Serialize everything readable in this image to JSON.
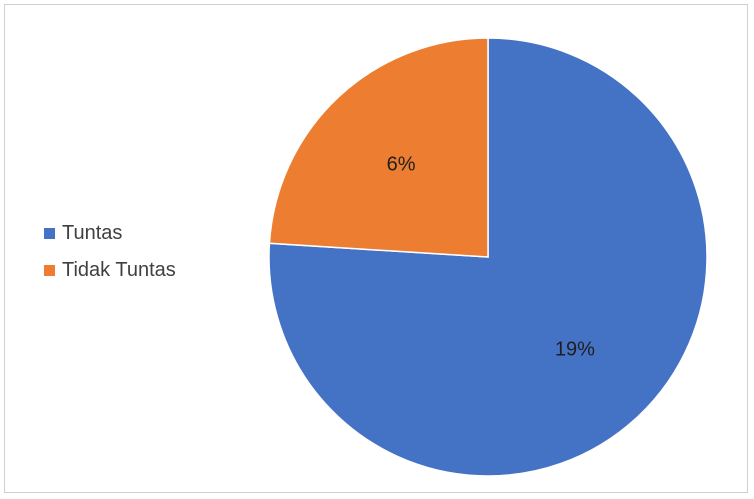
{
  "chart_data": {
    "type": "pie",
    "categories": [
      "Tuntas",
      "Tidak Tuntas"
    ],
    "values": [
      19,
      6
    ],
    "labels": [
      "19%",
      "6%"
    ],
    "colors": [
      "#4472C4",
      "#ED7D31"
    ],
    "legend_position": "left",
    "start_angle_deg": 0,
    "direction": "clockwise"
  }
}
